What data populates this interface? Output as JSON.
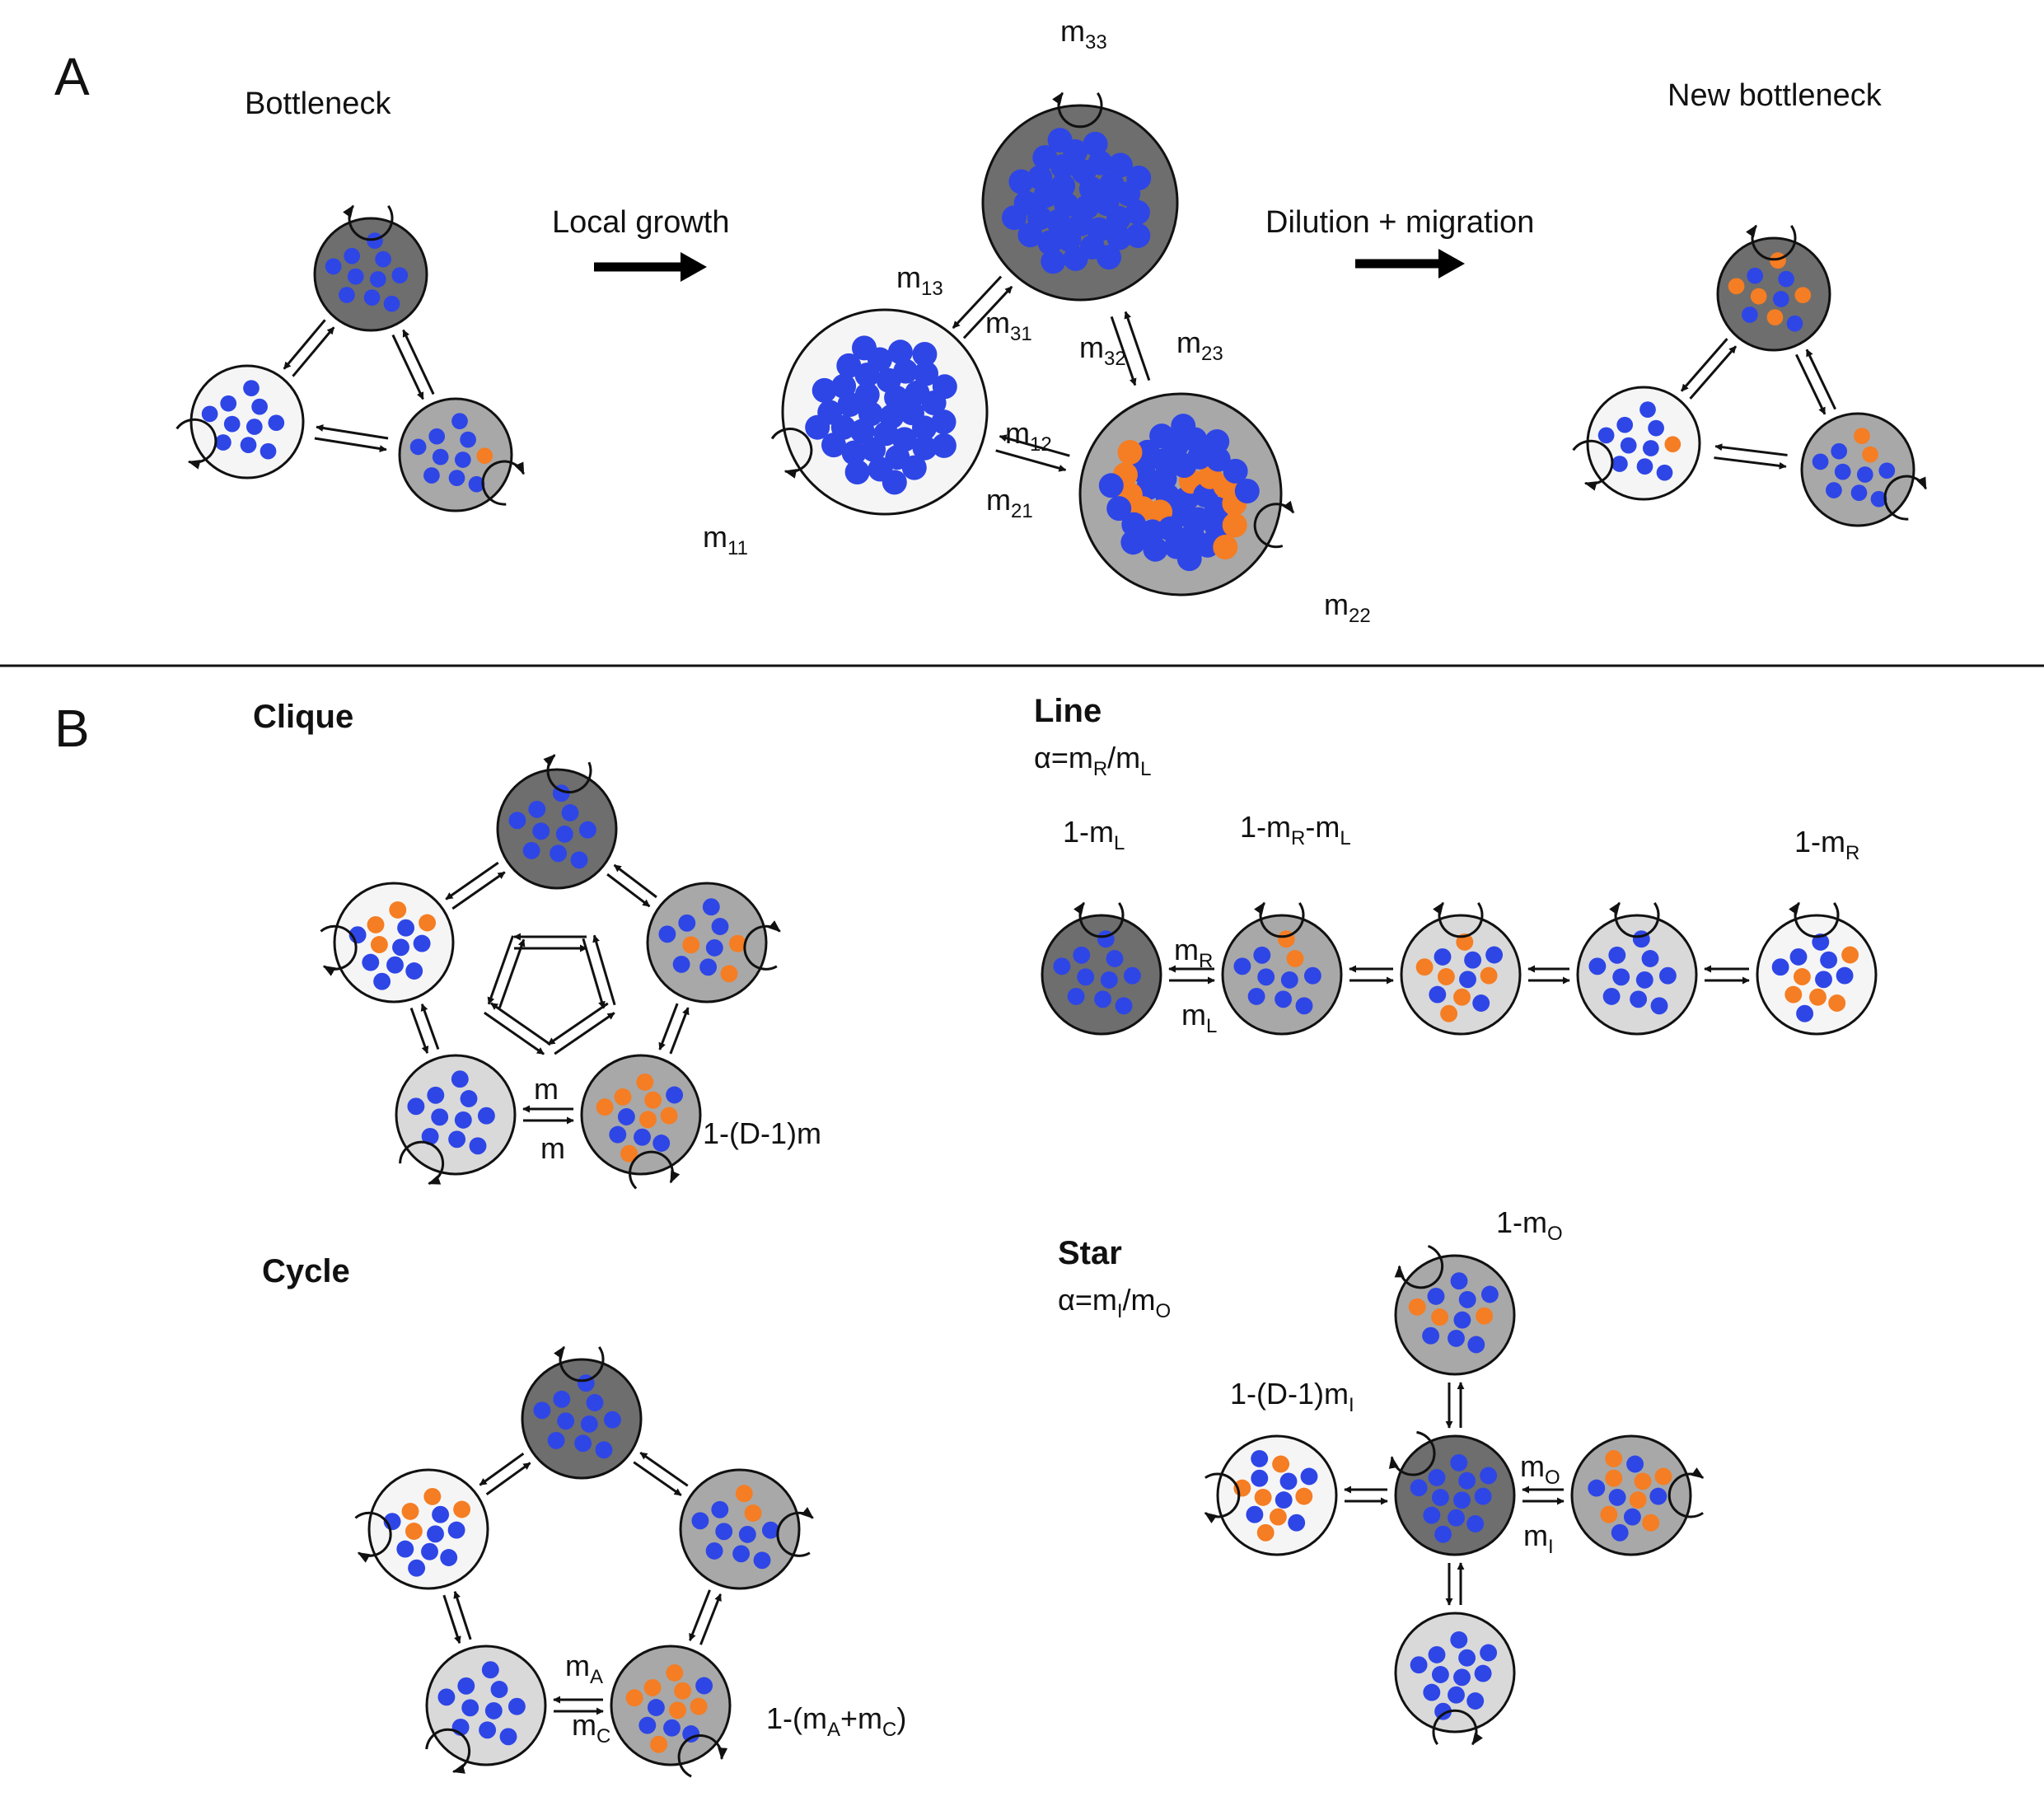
{
  "colors": {
    "patch_dark": "#6e6e6e",
    "patch_mid": "#a8a8a8",
    "patch_light": "#d9d9d9",
    "patch_white": "#f5f5f5",
    "dot_blue": "#2e46e6",
    "dot_orange": "#f57d23",
    "stroke": "#111111"
  },
  "panel_a": {
    "letter": "A",
    "stage_bottleneck": "Bottleneck",
    "stage_growth": "Local growth",
    "stage_dilution": "Dilution + migration",
    "stage_new": "New bottleneck",
    "rates": {
      "m33": {
        "base": "m",
        "sub": "33"
      },
      "m13": {
        "base": "m",
        "sub": "13"
      },
      "m31": {
        "base": "m",
        "sub": "31"
      },
      "m32": {
        "base": "m",
        "sub": "32"
      },
      "m23": {
        "base": "m",
        "sub": "23"
      },
      "m12": {
        "base": "m",
        "sub": "12"
      },
      "m21": {
        "base": "m",
        "sub": "21"
      },
      "m11": {
        "base": "m",
        "sub": "11"
      },
      "m22": {
        "base": "m",
        "sub": "22"
      }
    }
  },
  "panel_b": {
    "letter": "B",
    "clique": {
      "title": "Clique",
      "rate_top": "m",
      "rate_bottom": "m",
      "self_rate": "1-(D-1)m"
    },
    "line": {
      "title": "Line",
      "ratio": {
        "p1": "α=m",
        "s1": "R",
        "p2": "/m",
        "s2": "L"
      },
      "self_left": {
        "p1": "1-m",
        "s1": "L"
      },
      "self_second": {
        "p1": "1-m",
        "s1": "R",
        "p2": "-m",
        "s2": "L"
      },
      "self_right": {
        "p1": "1-m",
        "s1": "R"
      },
      "rate_top": {
        "base": "m",
        "sub": "R"
      },
      "rate_bottom": {
        "base": "m",
        "sub": "L"
      }
    },
    "cycle": {
      "title": "Cycle",
      "rate_top": {
        "base": "m",
        "sub": "A"
      },
      "rate_bottom": {
        "base": "m",
        "sub": "C"
      },
      "self_rate": {
        "p1": "1-(m",
        "s1": "A",
        "p2": "+m",
        "s2": "C",
        "p3": ")"
      }
    },
    "star": {
      "title": "Star",
      "ratio": {
        "p1": "α=m",
        "s1": "I",
        "p2": "/m",
        "s2": "O"
      },
      "self_top": {
        "p1": "1-m",
        "s1": "O"
      },
      "self_center": {
        "p1": "1-(D-1)m",
        "s1": "I"
      },
      "rate_top": {
        "base": "m",
        "sub": "O"
      },
      "rate_bottom": {
        "base": "m",
        "sub": "I"
      }
    }
  }
}
